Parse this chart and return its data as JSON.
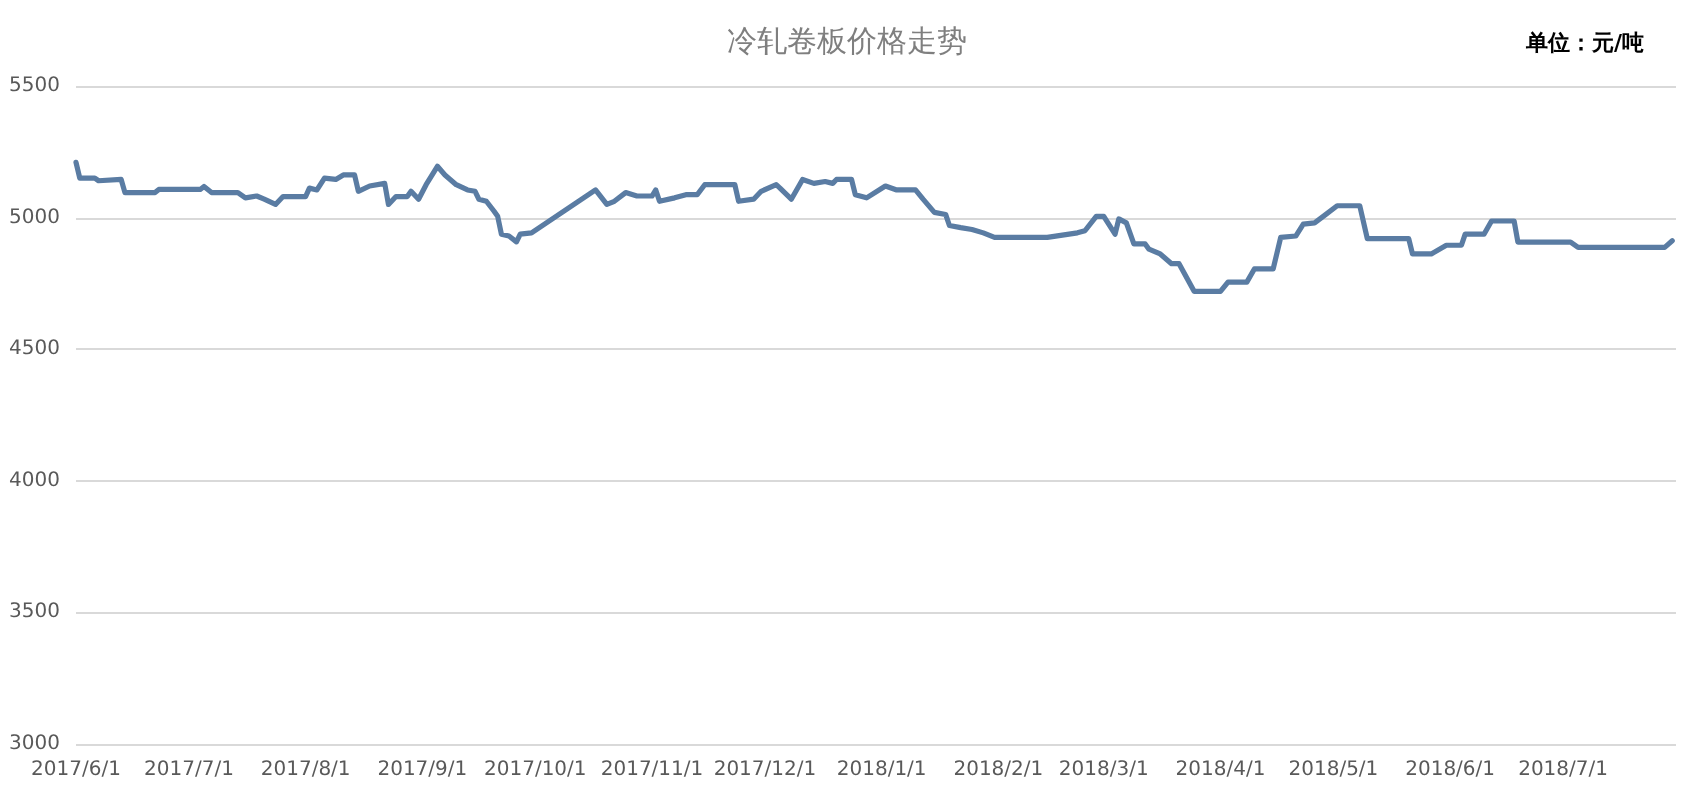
{
  "chart_data": {
    "type": "line",
    "title": "冷轧卷板价格走势",
    "annotations": [
      "单位：元/吨"
    ],
    "x": [
      "2017-06-01",
      "2017-06-02",
      "2017-06-06",
      "2017-06-07",
      "2017-06-13",
      "2017-06-14",
      "2017-06-22",
      "2017-06-23",
      "2017-07-04",
      "2017-07-05",
      "2017-07-07",
      "2017-07-14",
      "2017-07-16",
      "2017-07-19",
      "2017-07-21",
      "2017-07-24",
      "2017-07-26",
      "2017-08-01",
      "2017-08-02",
      "2017-08-04",
      "2017-08-06",
      "2017-08-09",
      "2017-08-11",
      "2017-08-14",
      "2017-08-15",
      "2017-08-18",
      "2017-08-22",
      "2017-08-23",
      "2017-08-25",
      "2017-08-28",
      "2017-08-29",
      "2017-08-31",
      "2017-09-02",
      "2017-09-05",
      "2017-09-07",
      "2017-09-10",
      "2017-09-13",
      "2017-09-15",
      "2017-09-16",
      "2017-09-18",
      "2017-09-20",
      "2017-09-21",
      "2017-09-22",
      "2017-09-24",
      "2017-09-26",
      "2017-09-27",
      "2017-09-30",
      "2017-10-17",
      "2017-10-20",
      "2017-10-22",
      "2017-10-25",
      "2017-10-28",
      "2017-11-01",
      "2017-11-02",
      "2017-11-03",
      "2017-11-07",
      "2017-11-10",
      "2017-11-13",
      "2017-11-15",
      "2017-11-23",
      "2017-11-24",
      "2017-11-28",
      "2017-11-30",
      "2017-12-04",
      "2017-12-05",
      "2017-12-08",
      "2017-12-11",
      "2017-12-14",
      "2017-12-17",
      "2017-12-19",
      "2017-12-20",
      "2017-12-24",
      "2017-12-25",
      "2017-12-28",
      "2018-01-02",
      "2018-01-05",
      "2018-01-10",
      "2018-01-12",
      "2018-01-15",
      "2018-01-18",
      "2018-01-19",
      "2018-01-22",
      "2018-01-25",
      "2018-01-28",
      "2018-01-31",
      "2018-02-14",
      "2018-02-22",
      "2018-02-24",
      "2018-02-27",
      "2018-03-01",
      "2018-03-04",
      "2018-03-05",
      "2018-03-07",
      "2018-03-09",
      "2018-03-12",
      "2018-03-13",
      "2018-03-16",
      "2018-03-19",
      "2018-03-21",
      "2018-03-25",
      "2018-04-01",
      "2018-04-03",
      "2018-04-08",
      "2018-04-10",
      "2018-04-15",
      "2018-04-17",
      "2018-04-21",
      "2018-04-23",
      "2018-04-26",
      "2018-04-29",
      "2018-05-02",
      "2018-05-08",
      "2018-05-10",
      "2018-05-21",
      "2018-05-22",
      "2018-05-27",
      "2018-05-31",
      "2018-06-04",
      "2018-06-05",
      "2018-06-10",
      "2018-06-12",
      "2018-06-18",
      "2018-06-19",
      "2018-07-03",
      "2018-07-05",
      "2018-07-28",
      "2018-07-30"
    ],
    "values": [
      5210,
      5150,
      5150,
      5140,
      5145,
      5095,
      5095,
      5107,
      5107,
      5118,
      5095,
      5095,
      5075,
      5082,
      5070,
      5050,
      5080,
      5080,
      5112,
      5105,
      5150,
      5145,
      5162,
      5162,
      5100,
      5120,
      5130,
      5050,
      5080,
      5080,
      5100,
      5070,
      5125,
      5195,
      5162,
      5125,
      5105,
      5100,
      5070,
      5062,
      5025,
      5005,
      4937,
      4930,
      4908,
      4937,
      4942,
      5105,
      5050,
      5062,
      5095,
      5082,
      5082,
      5105,
      5062,
      5075,
      5087,
      5087,
      5125,
      5125,
      5062,
      5070,
      5100,
      5125,
      5112,
      5070,
      5145,
      5130,
      5137,
      5130,
      5145,
      5145,
      5087,
      5075,
      5120,
      5105,
      5105,
      5070,
      5020,
      5012,
      4970,
      4962,
      4955,
      4942,
      4925,
      4925,
      4942,
      4950,
      5005,
      5005,
      4937,
      4995,
      4980,
      4900,
      4900,
      4880,
      4862,
      4825,
      4825,
      4720,
      4720,
      4755,
      4755,
      4805,
      4805,
      4925,
      4930,
      4975,
      4980,
      5012,
      5045,
      5045,
      4920,
      4920,
      4862,
      4862,
      4895,
      4895,
      4937,
      4937,
      4987,
      4987,
      4907,
      4907,
      4887,
      4887,
      4912
    ],
    "color": "#5a7ca3",
    "marker": "none",
    "line_style": "solid",
    "xlim": [
      "2017-06-01",
      "2018-07-31"
    ],
    "xticks": [
      {
        "value": "2017-06-01",
        "label": "2017/6/1"
      },
      {
        "value": "2017-07-01",
        "label": "2017/7/1"
      },
      {
        "value": "2017-08-01",
        "label": "2017/8/1"
      },
      {
        "value": "2017-09-01",
        "label": "2017/9/1"
      },
      {
        "value": "2017-10-01",
        "label": "2017/10/1"
      },
      {
        "value": "2017-11-01",
        "label": "2017/11/1"
      },
      {
        "value": "2017-12-01",
        "label": "2017/12/1"
      },
      {
        "value": "2018-01-01",
        "label": "2018/1/1"
      },
      {
        "value": "2018-02-01",
        "label": "2018/2/1"
      },
      {
        "value": "2018-03-01",
        "label": "2018/3/1"
      },
      {
        "value": "2018-04-01",
        "label": "2018/4/1"
      },
      {
        "value": "2018-05-01",
        "label": "2018/5/1"
      },
      {
        "value": "2018-06-01",
        "label": "2018/6/1"
      },
      {
        "value": "2018-07-01",
        "label": "2018/7/1"
      }
    ],
    "ylim": [
      3000,
      5500
    ],
    "yticks": [
      3000,
      3500,
      4000,
      4500,
      5000,
      5500
    ],
    "grid": "y"
  }
}
